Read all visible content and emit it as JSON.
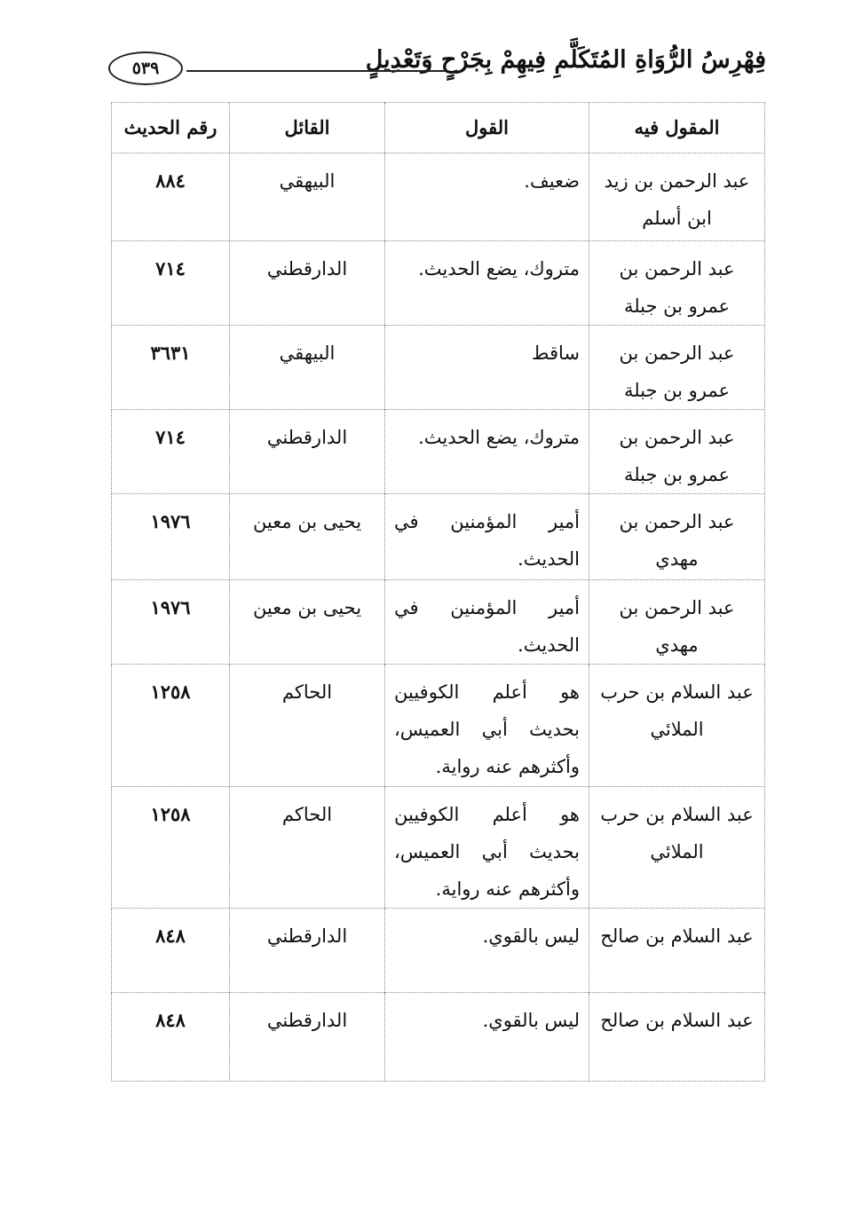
{
  "header": {
    "title": "فِهْرِسُ الرُّوَاةِ المُتَكَلَّمِ فِيهِمْ بِجَرْحٍ وَتَعْدِيلٍ",
    "page_number": "٥٣٩"
  },
  "table": {
    "columns": [
      "المقول فيه",
      "القول",
      "القائل",
      "رقم الحديث"
    ],
    "rows": [
      {
        "name": "عبد الرحمن بن زيد ابن أسلم",
        "qawl": "ضعيف.",
        "sayer": "البيهقي",
        "num": "٨٨٤"
      },
      {
        "name": "عبد الرحمن بن عمرو بن جبلة",
        "qawl": "متروك، يضع الحديث.",
        "sayer": "الدارقطني",
        "num": "٧١٤"
      },
      {
        "name": "عبد الرحمن بن عمرو بن جبلة",
        "qawl": "ساقط",
        "sayer": "البيهقي",
        "num": "٣٦٣١"
      },
      {
        "name": "عبد الرحمن بن عمرو بن جبلة",
        "qawl": "متروك، يضع الحديث.",
        "sayer": "الدارقطني",
        "num": "٧١٤"
      },
      {
        "name": "عبد الرحمن بن مهدي",
        "qawl": "أمير المؤمنين في الحديث.",
        "sayer": "يحيى بن معين",
        "num": "١٩٧٦"
      },
      {
        "name": "عبد الرحمن بن مهدي",
        "qawl": "أمير المؤمنين في الحديث.",
        "sayer": "يحيى بن معين",
        "num": "١٩٧٦"
      },
      {
        "name": "عبد السلام بن حرب الملائي",
        "qawl": "هو أعلم الكوفيين بحديث أبي العميس، وأكثرهم عنه رواية.",
        "sayer": "الحاكم",
        "num": "١٢٥٨"
      },
      {
        "name": "عبد السلام بن حرب الملائي",
        "qawl": "هو أعلم الكوفيين بحديث أبي العميس، وأكثرهم عنه رواية.",
        "sayer": "الحاكم",
        "num": "١٢٥٨"
      },
      {
        "name": "عبد السلام بن صالح",
        "qawl": "ليس بالقوي.",
        "sayer": "الدارقطني",
        "num": "٨٤٨"
      },
      {
        "name": "عبد السلام بن صالح",
        "qawl": "ليس بالقوي.",
        "sayer": "الدارقطني",
        "num": "٨٤٨"
      }
    ]
  }
}
